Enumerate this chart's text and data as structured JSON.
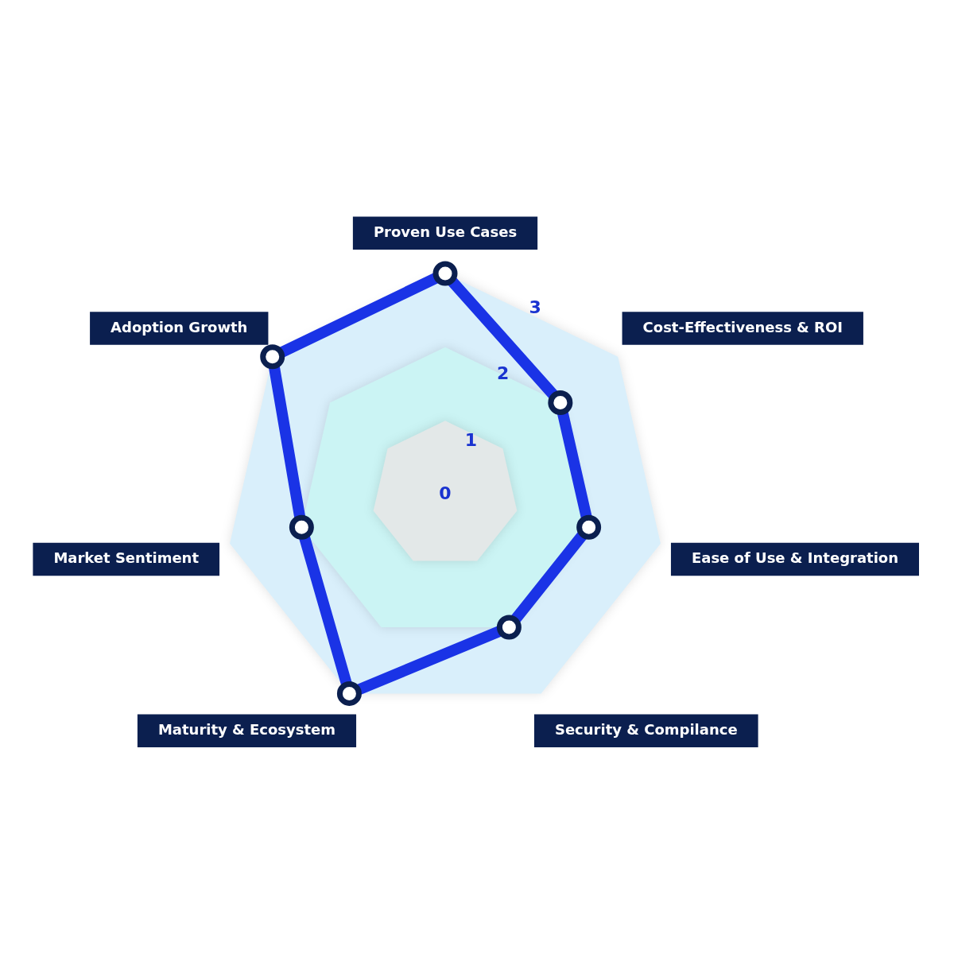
{
  "chart_data": {
    "type": "radar",
    "categories": [
      "Proven Use Cases",
      "Cost-Effectiveness & ROI",
      "Ease of Use & Integration",
      "Security & Compilance",
      "Maturity & Ecosystem",
      "Market Sentiment",
      "Adoption Growth"
    ],
    "series": [
      {
        "color": "#1a33e6",
        "values": [
          3,
          2,
          2,
          2,
          3,
          2,
          3
        ]
      }
    ],
    "ylim": [
      0,
      3
    ],
    "yticks": [
      0,
      1,
      2,
      3
    ],
    "grid": true,
    "marker": "circle"
  }
}
